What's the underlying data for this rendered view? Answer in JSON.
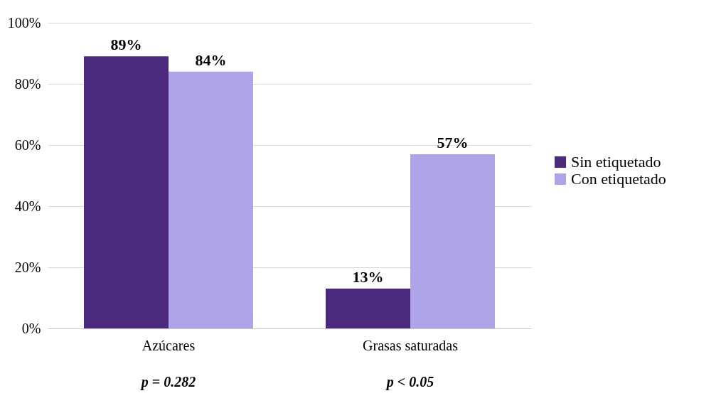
{
  "chart_data": {
    "type": "bar",
    "categories": [
      "Azúcares",
      "Grasas saturadas"
    ],
    "series": [
      {
        "name": "Sin etiquetado",
        "color": "#4b2a7e",
        "values": [
          89,
          13
        ],
        "value_labels": [
          "89%",
          "13%"
        ]
      },
      {
        "name": "Con etiquetado",
        "color": "#b0a4e8",
        "values": [
          84,
          57
        ],
        "value_labels": [
          "84%",
          "57%"
        ]
      }
    ],
    "ylim": [
      0,
      100
    ],
    "yticks": [
      {
        "value": 0,
        "label": "0%"
      },
      {
        "value": 20,
        "label": "20%"
      },
      {
        "value": 40,
        "label": "40%"
      },
      {
        "value": 60,
        "label": "60%"
      },
      {
        "value": 80,
        "label": "80%"
      },
      {
        "value": 100,
        "label": "100%"
      }
    ],
    "grid": "y",
    "legend": "right",
    "annotations": [
      "p = 0.282",
      "p < 0.05"
    ]
  }
}
